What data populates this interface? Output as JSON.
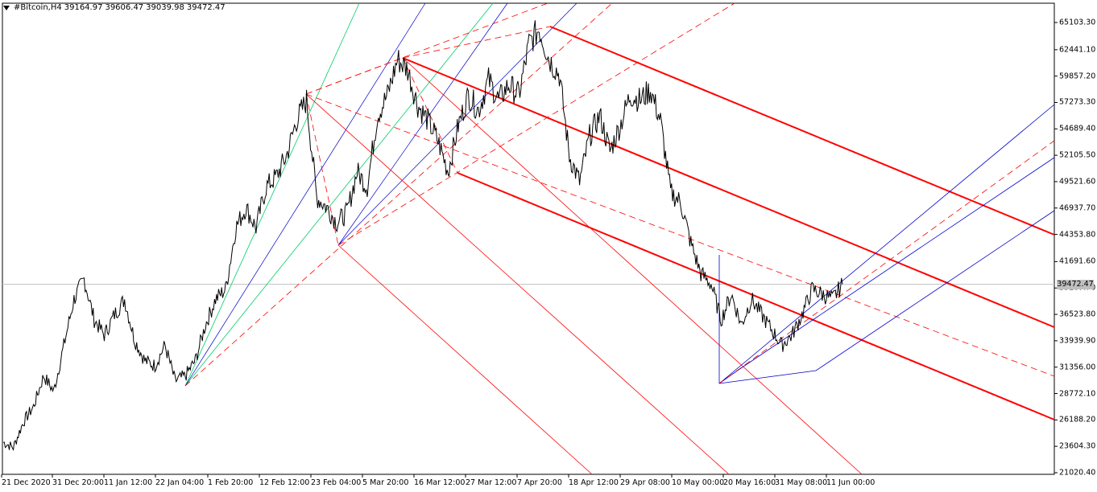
{
  "header": {
    "symbol": "#Bitcoin,H4",
    "open": "39164.97",
    "high": "39606.47",
    "low": "39039.98",
    "close": "39472.47"
  },
  "current_price_label": "39472.47",
  "y_axis": {
    "min": 21020.0,
    "max": 66500.0,
    "ticks": [
      "65103.30",
      "62441.10",
      "59857.20",
      "57273.30",
      "54689.40",
      "52105.50",
      "49521.60",
      "46937.70",
      "44353.80",
      "41691.60",
      "39107.70",
      "36523.80",
      "33939.90",
      "31356.00",
      "28772.10",
      "26188.20",
      "23604.30",
      "21020.40"
    ]
  },
  "x_axis": {
    "labels": [
      "21 Dec 2020",
      "31 Dec 20:00",
      "11 Jan 12:00",
      "22 Jan 04:00",
      "1 Feb 20:00",
      "12 Feb 12:00",
      "23 Feb 04:00",
      "5 Mar 20:00",
      "16 Mar 12:00",
      "27 Mar 12:00",
      "7 Apr 20:00",
      "18 Apr 12:00",
      "29 Apr 08:00",
      "10 May 00:00",
      "20 May 16:00",
      "31 May 08:00",
      "11 Jun 00:00"
    ]
  },
  "colors": {
    "price": "#000000",
    "pitchfork_main": "#ff0000",
    "pitchfork_dash": "#ff0000",
    "blue_lines": "#0000cc",
    "green_lines": "#00cc66",
    "grid_line": "#c0c0c0",
    "price_tag_bg": "#c0c0c0"
  },
  "chart_data": {
    "type": "line",
    "series": [
      {
        "values": [
          24000,
          23500,
          26000,
          27500,
          30500,
          29000,
          33500,
          38000,
          40000,
          36000,
          34500,
          36500,
          38000,
          34000,
          32000,
          31500,
          33500,
          30000,
          30500,
          32000,
          35500,
          38000,
          39000,
          45000,
          47000,
          45000,
          49000,
          50000,
          52000,
          55500,
          57500,
          48000,
          47000,
          45500,
          46500,
          50500,
          49000,
          56000,
          58000,
          61500,
          60500,
          57000,
          55500,
          53500,
          50500,
          55000,
          58000,
          56500,
          59500,
          57500,
          59000,
          58000,
          63000,
          64500,
          61500,
          60000,
          52000,
          49500,
          54000,
          56000,
          52500,
          55000,
          58000,
          57500,
          58500,
          55500,
          48500,
          47500,
          43500,
          40500,
          39500,
          36000,
          38500,
          35500,
          38000,
          36500,
          35000,
          33500,
          34500,
          36500,
          39000,
          38500,
          38000,
          39472
        ]
      }
    ]
  }
}
